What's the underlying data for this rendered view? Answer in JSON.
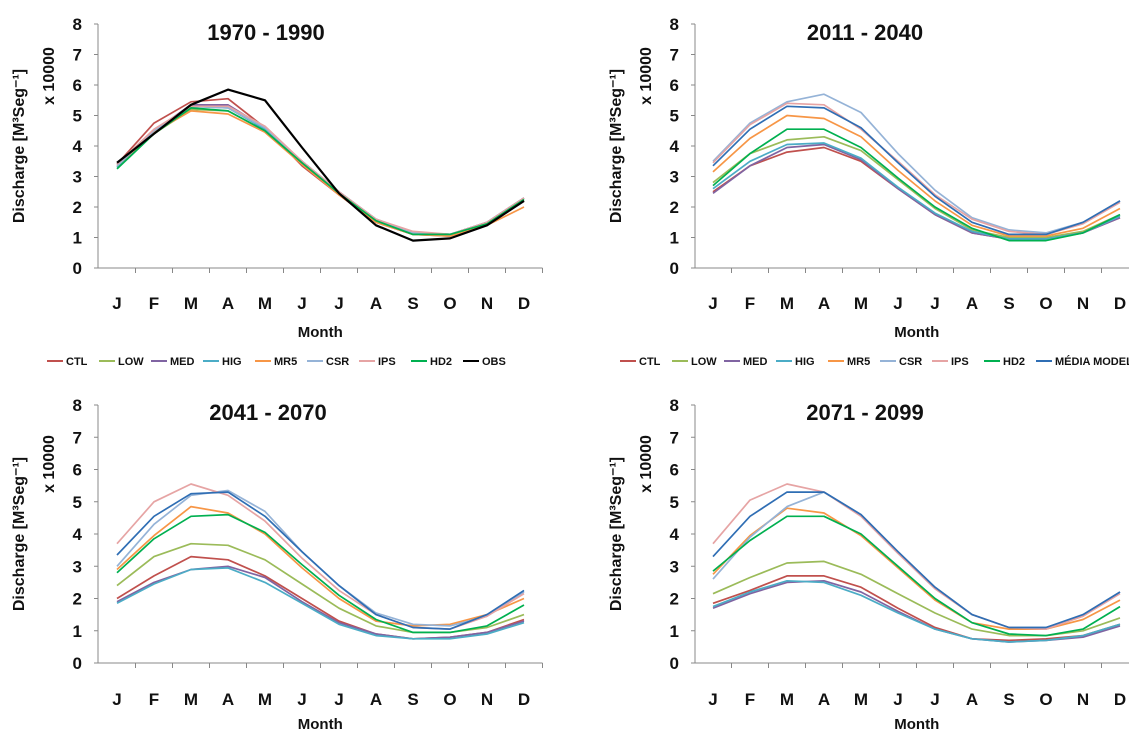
{
  "chart_data": [
    {
      "type": "line",
      "title": "1970 - 1990",
      "xlabel": "Month",
      "ylabel_line1": "Discharge [M³Seg⁻¹]",
      "ylabel_line2": "x 10000",
      "categories": [
        "J",
        "F",
        "M",
        "A",
        "M",
        "J",
        "J",
        "A",
        "S",
        "O",
        "N",
        "D"
      ],
      "ylim": [
        0,
        8
      ],
      "yticks": [
        "0",
        "1",
        "2",
        "3",
        "4",
        "5",
        "6",
        "7",
        "8"
      ],
      "series": [
        {
          "name": "CTL",
          "color": "#c0504d",
          "values": [
            3.4,
            4.75,
            5.45,
            5.55,
            4.6,
            3.35,
            2.4,
            1.5,
            1.1,
            1.05,
            1.45,
            2.2
          ]
        },
        {
          "name": "LOW",
          "color": "#9bbb59",
          "values": [
            3.3,
            4.4,
            5.2,
            5.15,
            4.5,
            3.45,
            2.45,
            1.55,
            1.1,
            1.1,
            1.45,
            2.25
          ]
        },
        {
          "name": "MED",
          "color": "#8064a2",
          "values": [
            3.4,
            4.5,
            5.35,
            5.35,
            4.6,
            3.5,
            2.5,
            1.55,
            1.15,
            1.1,
            1.5,
            2.3
          ]
        },
        {
          "name": "HIG",
          "color": "#4bacc6",
          "values": [
            3.3,
            4.45,
            5.3,
            5.25,
            4.55,
            3.5,
            2.5,
            1.6,
            1.15,
            1.1,
            1.5,
            2.3
          ]
        },
        {
          "name": "MR5",
          "color": "#f79646",
          "values": [
            3.35,
            4.45,
            5.15,
            5.05,
            4.45,
            3.4,
            2.4,
            1.5,
            1.1,
            1.05,
            1.4,
            2.0
          ]
        },
        {
          "name": "CSR",
          "color": "#95b3d7",
          "values": [
            3.35,
            4.5,
            5.3,
            5.25,
            4.6,
            3.5,
            2.5,
            1.6,
            1.15,
            1.1,
            1.5,
            2.3
          ]
        },
        {
          "name": "IPS",
          "color": "#e6a4a4",
          "values": [
            3.4,
            4.55,
            5.3,
            5.3,
            4.65,
            3.5,
            2.5,
            1.6,
            1.2,
            1.1,
            1.5,
            2.3
          ]
        },
        {
          "name": "HD2",
          "color": "#00b050",
          "values": [
            3.25,
            4.4,
            5.25,
            5.15,
            4.5,
            3.45,
            2.45,
            1.55,
            1.1,
            1.1,
            1.45,
            2.25
          ]
        },
        {
          "name": "OBS",
          "color": "#000000",
          "values": [
            3.45,
            4.4,
            5.35,
            5.85,
            5.5,
            3.95,
            2.45,
            1.4,
            0.9,
            0.97,
            1.4,
            2.2
          ]
        }
      ],
      "legend": [
        "CTL",
        "LOW",
        "MED",
        "HIG",
        "MR5",
        "CSR",
        "IPS",
        "HD2",
        "OBS"
      ]
    },
    {
      "type": "line",
      "title": "2011 - 2040",
      "xlabel": "Month",
      "ylabel_line1": "Discharge [M³Seg⁻¹]",
      "ylabel_line2": "x 10000",
      "categories": [
        "J",
        "F",
        "M",
        "A",
        "M",
        "J",
        "J",
        "A",
        "S",
        "O",
        "N",
        "D"
      ],
      "ylim": [
        0,
        8
      ],
      "yticks": [
        "0",
        "1",
        "2",
        "3",
        "4",
        "5",
        "6",
        "7",
        "8"
      ],
      "series": [
        {
          "name": "CTL",
          "color": "#c0504d",
          "values": [
            2.5,
            3.35,
            3.8,
            3.95,
            3.5,
            2.6,
            1.75,
            1.15,
            0.95,
            0.95,
            1.15,
            1.65
          ]
        },
        {
          "name": "LOW",
          "color": "#9bbb59",
          "values": [
            2.8,
            3.75,
            4.2,
            4.3,
            3.85,
            2.9,
            1.95,
            1.25,
            1.0,
            1.0,
            1.2,
            1.75
          ]
        },
        {
          "name": "MED",
          "color": "#8064a2",
          "values": [
            2.45,
            3.35,
            3.95,
            4.05,
            3.55,
            2.6,
            1.75,
            1.15,
            0.95,
            0.95,
            1.15,
            1.65
          ]
        },
        {
          "name": "HIG",
          "color": "#4bacc6",
          "values": [
            2.6,
            3.5,
            4.05,
            4.1,
            3.6,
            2.65,
            1.8,
            1.2,
            0.95,
            0.95,
            1.15,
            1.7
          ]
        },
        {
          "name": "MR5",
          "color": "#f79646",
          "values": [
            3.15,
            4.25,
            5.0,
            4.9,
            4.3,
            3.2,
            2.2,
            1.4,
            1.05,
            1.05,
            1.3,
            1.95
          ]
        },
        {
          "name": "CSR",
          "color": "#95b3d7",
          "values": [
            3.5,
            4.75,
            5.45,
            5.7,
            5.1,
            3.75,
            2.55,
            1.65,
            1.25,
            1.15,
            1.5,
            2.2
          ]
        },
        {
          "name": "IPS",
          "color": "#e6a4a4",
          "values": [
            3.45,
            4.7,
            5.4,
            5.35,
            4.55,
            3.5,
            2.4,
            1.6,
            1.2,
            1.1,
            1.45,
            2.15
          ]
        },
        {
          "name": "HD2",
          "color": "#00b050",
          "values": [
            2.7,
            3.75,
            4.55,
            4.55,
            3.95,
            2.95,
            2.0,
            1.3,
            0.9,
            0.9,
            1.15,
            1.75
          ]
        },
        {
          "name": "MÉDIA MODELOS",
          "color": "#2f6eb4",
          "values": [
            3.35,
            4.55,
            5.3,
            5.25,
            4.6,
            3.45,
            2.35,
            1.5,
            1.1,
            1.1,
            1.5,
            2.2
          ]
        }
      ],
      "legend": [
        "CTL",
        "LOW",
        "MED",
        "HIG",
        "MR5",
        "CSR",
        "IPS",
        "HD2",
        "MÉDIA MODELOS"
      ]
    },
    {
      "type": "line",
      "title": "2041 - 2070",
      "xlabel": "Month",
      "ylabel_line1": "Discharge [M³Seg⁻¹]",
      "ylabel_line2": "x 10000",
      "categories": [
        "J",
        "F",
        "M",
        "A",
        "M",
        "J",
        "J",
        "A",
        "S",
        "O",
        "N",
        "D"
      ],
      "ylim": [
        0,
        8
      ],
      "yticks": [
        "0",
        "1",
        "2",
        "3",
        "4",
        "5",
        "6",
        "7",
        "8"
      ],
      "series": [
        {
          "name": "CTL",
          "color": "#c0504d",
          "values": [
            2.0,
            2.7,
            3.3,
            3.2,
            2.7,
            2.0,
            1.3,
            0.9,
            0.75,
            0.8,
            0.95,
            1.35
          ]
        },
        {
          "name": "LOW",
          "color": "#9bbb59",
          "values": [
            2.4,
            3.3,
            3.7,
            3.65,
            3.2,
            2.45,
            1.7,
            1.15,
            0.95,
            0.95,
            1.1,
            1.5
          ]
        },
        {
          "name": "MED",
          "color": "#8064a2",
          "values": [
            1.9,
            2.5,
            2.9,
            3.0,
            2.65,
            1.9,
            1.25,
            0.9,
            0.75,
            0.8,
            0.95,
            1.3
          ]
        },
        {
          "name": "HIG",
          "color": "#4bacc6",
          "values": [
            1.85,
            2.45,
            2.9,
            2.95,
            2.5,
            1.85,
            1.2,
            0.85,
            0.75,
            0.75,
            0.9,
            1.25
          ]
        },
        {
          "name": "MR5",
          "color": "#f79646",
          "values": [
            2.9,
            3.95,
            4.85,
            4.65,
            4.0,
            2.95,
            2.0,
            1.3,
            1.15,
            1.2,
            1.5,
            2.0
          ]
        },
        {
          "name": "CSR",
          "color": "#95b3d7",
          "values": [
            3.0,
            4.3,
            5.2,
            5.35,
            4.7,
            3.45,
            2.4,
            1.55,
            1.2,
            1.15,
            1.45,
            2.2
          ]
        },
        {
          "name": "IPS",
          "color": "#e6a4a4",
          "values": [
            3.7,
            5.0,
            5.55,
            5.2,
            4.4,
            3.25,
            2.25,
            1.5,
            1.1,
            1.05,
            1.45,
            2.15
          ]
        },
        {
          "name": "HD2",
          "color": "#00b050",
          "values": [
            2.8,
            3.85,
            4.55,
            4.6,
            4.05,
            3.05,
            2.1,
            1.35,
            0.95,
            0.95,
            1.15,
            1.8
          ]
        },
        {
          "name": "MÉDIA MODELOS",
          "color": "#2f6eb4",
          "values": [
            3.35,
            4.55,
            5.25,
            5.3,
            4.55,
            3.45,
            2.4,
            1.5,
            1.1,
            1.05,
            1.5,
            2.25
          ]
        }
      ]
    },
    {
      "type": "line",
      "title": "2071 - 2099",
      "xlabel": "Month",
      "ylabel_line1": "Discharge [M³Seg⁻¹]",
      "ylabel_line2": "x 10000",
      "categories": [
        "J",
        "F",
        "M",
        "A",
        "M",
        "J",
        "J",
        "A",
        "S",
        "O",
        "N",
        "D"
      ],
      "ylim": [
        0,
        8
      ],
      "yticks": [
        "0",
        "1",
        "2",
        "3",
        "4",
        "5",
        "6",
        "7",
        "8"
      ],
      "series": [
        {
          "name": "CTL",
          "color": "#c0504d",
          "values": [
            1.85,
            2.25,
            2.7,
            2.7,
            2.35,
            1.7,
            1.1,
            0.75,
            0.7,
            0.75,
            0.85,
            1.2
          ]
        },
        {
          "name": "LOW",
          "color": "#9bbb59",
          "values": [
            2.15,
            2.65,
            3.1,
            3.15,
            2.75,
            2.15,
            1.55,
            1.05,
            0.85,
            0.85,
            1.0,
            1.4
          ]
        },
        {
          "name": "MED",
          "color": "#8064a2",
          "values": [
            1.7,
            2.15,
            2.5,
            2.55,
            2.2,
            1.6,
            1.05,
            0.75,
            0.65,
            0.7,
            0.8,
            1.15
          ]
        },
        {
          "name": "HIG",
          "color": "#4bacc6",
          "values": [
            1.75,
            2.2,
            2.55,
            2.5,
            2.1,
            1.55,
            1.05,
            0.75,
            0.65,
            0.7,
            0.85,
            1.2
          ]
        },
        {
          "name": "MR5",
          "color": "#f79646",
          "values": [
            2.75,
            3.95,
            4.8,
            4.65,
            3.95,
            2.95,
            1.95,
            1.25,
            1.05,
            1.05,
            1.35,
            1.95
          ]
        },
        {
          "name": "CSR",
          "color": "#95b3d7",
          "values": [
            2.6,
            3.9,
            4.85,
            5.3,
            4.6,
            3.45,
            2.35,
            1.5,
            1.1,
            1.1,
            1.45,
            2.2
          ]
        },
        {
          "name": "IPS",
          "color": "#e6a4a4",
          "values": [
            3.7,
            5.05,
            5.55,
            5.3,
            4.55,
            3.4,
            2.3,
            1.5,
            1.1,
            1.05,
            1.45,
            2.15
          ]
        },
        {
          "name": "HD2",
          "color": "#00b050",
          "values": [
            2.85,
            3.8,
            4.55,
            4.55,
            4.0,
            3.0,
            2.0,
            1.25,
            0.9,
            0.85,
            1.05,
            1.75
          ]
        },
        {
          "name": "MÉDIA MODELOS",
          "color": "#2f6eb4",
          "values": [
            3.3,
            4.55,
            5.3,
            5.3,
            4.6,
            3.45,
            2.35,
            1.5,
            1.1,
            1.1,
            1.5,
            2.2
          ]
        }
      ]
    }
  ]
}
